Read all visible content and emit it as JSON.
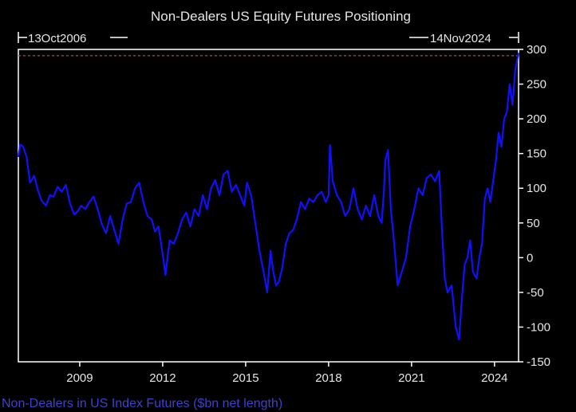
{
  "colors": {
    "background": "#000000",
    "axis": "#ffffff",
    "text": "#e6e6e6",
    "series": "#1010ff",
    "reference_line": "#c04040",
    "footer_text": "#3f3fd0"
  },
  "chart_data": {
    "type": "line",
    "title": "Non-Dealers US Equity Futures Positioning",
    "start_date_label": "13Oct2006",
    "end_date_label": "14Nov2024",
    "footer_label": "Non-Dealers in US Index Futures ($bn net length)",
    "xlabel": "",
    "ylabel": "",
    "ylim": [
      -150,
      300
    ],
    "xlim": [
      2006.78,
      2024.87
    ],
    "y_ticks": [
      300,
      250,
      200,
      150,
      100,
      50,
      0,
      -50,
      -100,
      -150
    ],
    "x_ticks": [
      2009,
      2012,
      2015,
      2018,
      2021,
      2024
    ],
    "y_axis_side": "right",
    "grid": false,
    "legend": "none",
    "reference_line": {
      "y": 291,
      "style": "dashed"
    },
    "series": [
      {
        "x": [
          2006.78,
          2006.85,
          2006.95,
          2007.08,
          2007.2,
          2007.35,
          2007.48,
          2007.62,
          2007.78,
          2007.92,
          2008.05,
          2008.2,
          2008.35,
          2008.5,
          2008.65,
          2008.8,
          2008.95,
          2009.05,
          2009.2,
          2009.35,
          2009.5,
          2009.65,
          2009.8,
          2009.95,
          2010.1,
          2010.25,
          2010.4,
          2010.55,
          2010.7,
          2010.85,
          2011.0,
          2011.15,
          2011.3,
          2011.45,
          2011.6,
          2011.72,
          2011.85,
          2012.0,
          2012.1,
          2012.25,
          2012.4,
          2012.55,
          2012.7,
          2012.85,
          2013.0,
          2013.15,
          2013.3,
          2013.45,
          2013.6,
          2013.75,
          2013.9,
          2014.05,
          2014.2,
          2014.35,
          2014.5,
          2014.65,
          2014.8,
          2014.95,
          2015.05,
          2015.2,
          2015.35,
          2015.5,
          2015.65,
          2015.78,
          2015.9,
          2016.0,
          2016.1,
          2016.2,
          2016.32,
          2016.45,
          2016.58,
          2016.72,
          2016.85,
          2017.0,
          2017.15,
          2017.3,
          2017.45,
          2017.6,
          2017.75,
          2017.9,
          2018.0,
          2018.05,
          2018.15,
          2018.3,
          2018.45,
          2018.6,
          2018.75,
          2018.9,
          2019.05,
          2019.2,
          2019.35,
          2019.5,
          2019.65,
          2019.8,
          2019.92,
          2020.0,
          2020.05,
          2020.15,
          2020.25,
          2020.35,
          2020.5,
          2020.65,
          2020.8,
          2020.95,
          2021.1,
          2021.25,
          2021.4,
          2021.55,
          2021.7,
          2021.85,
          2022.0,
          2022.1,
          2022.2,
          2022.3,
          2022.45,
          2022.6,
          2022.72,
          2022.82,
          2022.92,
          2023.02,
          2023.12,
          2023.22,
          2023.35,
          2023.45,
          2023.55,
          2023.65,
          2023.75,
          2023.85,
          2023.95,
          2024.05,
          2024.15,
          2024.25,
          2024.35,
          2024.45,
          2024.55,
          2024.65,
          2024.75,
          2024.87
        ],
        "y": [
          145,
          163,
          160,
          145,
          108,
          118,
          98,
          82,
          75,
          90,
          88,
          102,
          95,
          105,
          78,
          62,
          68,
          75,
          70,
          80,
          88,
          70,
          48,
          35,
          60,
          40,
          20,
          55,
          78,
          80,
          100,
          108,
          80,
          60,
          55,
          38,
          45,
          5,
          -25,
          25,
          20,
          35,
          55,
          65,
          45,
          70,
          60,
          90,
          70,
          100,
          112,
          90,
          120,
          125,
          95,
          105,
          90,
          75,
          108,
          90,
          50,
          10,
          -20,
          -50,
          10,
          -20,
          -40,
          -35,
          -15,
          20,
          35,
          40,
          55,
          80,
          70,
          85,
          80,
          90,
          95,
          80,
          90,
          162,
          110,
          90,
          80,
          60,
          70,
          100,
          70,
          55,
          75,
          60,
          90,
          60,
          50,
          95,
          140,
          155,
          70,
          30,
          -40,
          -20,
          0,
          45,
          70,
          100,
          90,
          115,
          120,
          110,
          125,
          40,
          -30,
          -50,
          -40,
          -100,
          -118,
          -60,
          -10,
          0,
          25,
          -20,
          -30,
          0,
          20,
          85,
          100,
          80,
          110,
          140,
          180,
          160,
          200,
          210,
          250,
          220,
          270,
          295
        ]
      }
    ]
  }
}
